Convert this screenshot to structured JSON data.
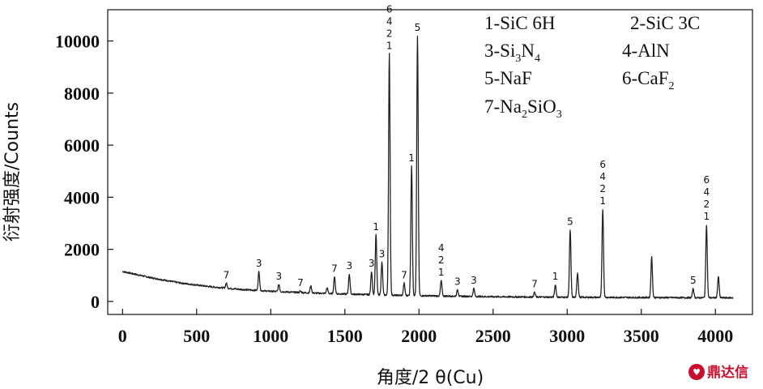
{
  "chart_data": {
    "type": "line",
    "title": "",
    "xlabel": "角度/2 θ(Cu)",
    "ylabel": "衍射强度/Counts",
    "xlim": [
      -100,
      4250
    ],
    "ylim": [
      -500,
      11200
    ],
    "xticks": [
      0,
      500,
      1000,
      1500,
      2000,
      2500,
      3000,
      3500,
      4000
    ],
    "yticks": [
      0,
      2000,
      4000,
      6000,
      8000,
      10000
    ],
    "grid": false,
    "legend_position": "top-right",
    "series": [
      {
        "baseline": [
          [
            0,
            1150
          ],
          [
            200,
            900
          ],
          [
            400,
            700
          ],
          [
            600,
            560
          ],
          [
            800,
            460
          ],
          [
            1000,
            390
          ],
          [
            1200,
            340
          ],
          [
            1400,
            300
          ],
          [
            1600,
            270
          ],
          [
            1800,
            240
          ],
          [
            2000,
            220
          ],
          [
            2500,
            180
          ],
          [
            3000,
            160
          ],
          [
            3500,
            150
          ],
          [
            4000,
            140
          ],
          [
            4120,
            140
          ]
        ],
        "peaks": [
          {
            "x": 700,
            "y": 700
          },
          {
            "x": 920,
            "y": 1150
          },
          {
            "x": 1055,
            "y": 650
          },
          {
            "x": 1200,
            "y": 400
          },
          {
            "x": 1270,
            "y": 600
          },
          {
            "x": 1380,
            "y": 520
          },
          {
            "x": 1430,
            "y": 950
          },
          {
            "x": 1530,
            "y": 1050
          },
          {
            "x": 1680,
            "y": 1150
          },
          {
            "x": 1710,
            "y": 2550
          },
          {
            "x": 1750,
            "y": 1500
          },
          {
            "x": 1800,
            "y": 9500
          },
          {
            "x": 1900,
            "y": 700
          },
          {
            "x": 1950,
            "y": 5200
          },
          {
            "x": 1990,
            "y": 10200
          },
          {
            "x": 2150,
            "y": 800
          },
          {
            "x": 2260,
            "y": 450
          },
          {
            "x": 2370,
            "y": 500
          },
          {
            "x": 2780,
            "y": 350
          },
          {
            "x": 2920,
            "y": 650
          },
          {
            "x": 3020,
            "y": 2750
          },
          {
            "x": 3070,
            "y": 1100
          },
          {
            "x": 3240,
            "y": 3550
          },
          {
            "x": 3570,
            "y": 1700
          },
          {
            "x": 3850,
            "y": 500
          },
          {
            "x": 3940,
            "y": 2950
          },
          {
            "x": 4020,
            "y": 950
          }
        ]
      }
    ],
    "annotations": [
      {
        "x": 700,
        "y": 700,
        "text": [
          "7"
        ]
      },
      {
        "x": 920,
        "y": 1150,
        "text": [
          "3"
        ]
      },
      {
        "x": 1055,
        "y": 650,
        "text": [
          "3"
        ]
      },
      {
        "x": 1200,
        "y": 400,
        "text": [
          "7"
        ]
      },
      {
        "x": 1430,
        "y": 950,
        "text": [
          "7"
        ]
      },
      {
        "x": 1530,
        "y": 1050,
        "text": [
          "3"
        ]
      },
      {
        "x": 1680,
        "y": 1150,
        "text": [
          "3"
        ]
      },
      {
        "x": 1710,
        "y": 2550,
        "text": [
          "1"
        ]
      },
      {
        "x": 1750,
        "y": 1500,
        "text": [
          "3"
        ]
      },
      {
        "x": 1800,
        "y": 9500,
        "text": [
          "6",
          "4",
          "2",
          "1"
        ]
      },
      {
        "x": 1900,
        "y": 700,
        "text": [
          "7"
        ]
      },
      {
        "x": 1950,
        "y": 5200,
        "text": [
          "1"
        ]
      },
      {
        "x": 1990,
        "y": 10200,
        "text": [
          "5"
        ]
      },
      {
        "x": 2150,
        "y": 800,
        "text": [
          "4",
          "2",
          "1"
        ]
      },
      {
        "x": 2260,
        "y": 450,
        "text": [
          "3"
        ]
      },
      {
        "x": 2370,
        "y": 500,
        "text": [
          "3"
        ]
      },
      {
        "x": 2780,
        "y": 350,
        "text": [
          "7"
        ]
      },
      {
        "x": 2920,
        "y": 650,
        "text": [
          "1"
        ]
      },
      {
        "x": 3020,
        "y": 2750,
        "text": [
          "5"
        ]
      },
      {
        "x": 3240,
        "y": 3550,
        "text": [
          "6",
          "4",
          "2",
          "1"
        ]
      },
      {
        "x": 3850,
        "y": 500,
        "text": [
          "5"
        ]
      },
      {
        "x": 3940,
        "y": 2950,
        "text": [
          "6",
          "4",
          "2",
          "1"
        ]
      }
    ],
    "legend": [
      {
        "label": "1-SiC 6H"
      },
      {
        "label": "2-SiC 3C"
      },
      {
        "label": "3-Si",
        "sub": "3",
        "label2": "N",
        "sub2": "4"
      },
      {
        "label": "4-AlN"
      },
      {
        "label": "5-NaF"
      },
      {
        "label": "6-CaF",
        "sub": "2"
      },
      {
        "label": "7-Na",
        "sub": "2",
        "label2": "SiO",
        "sub2": "3"
      }
    ]
  },
  "watermark": {
    "text": "鼎达信"
  }
}
